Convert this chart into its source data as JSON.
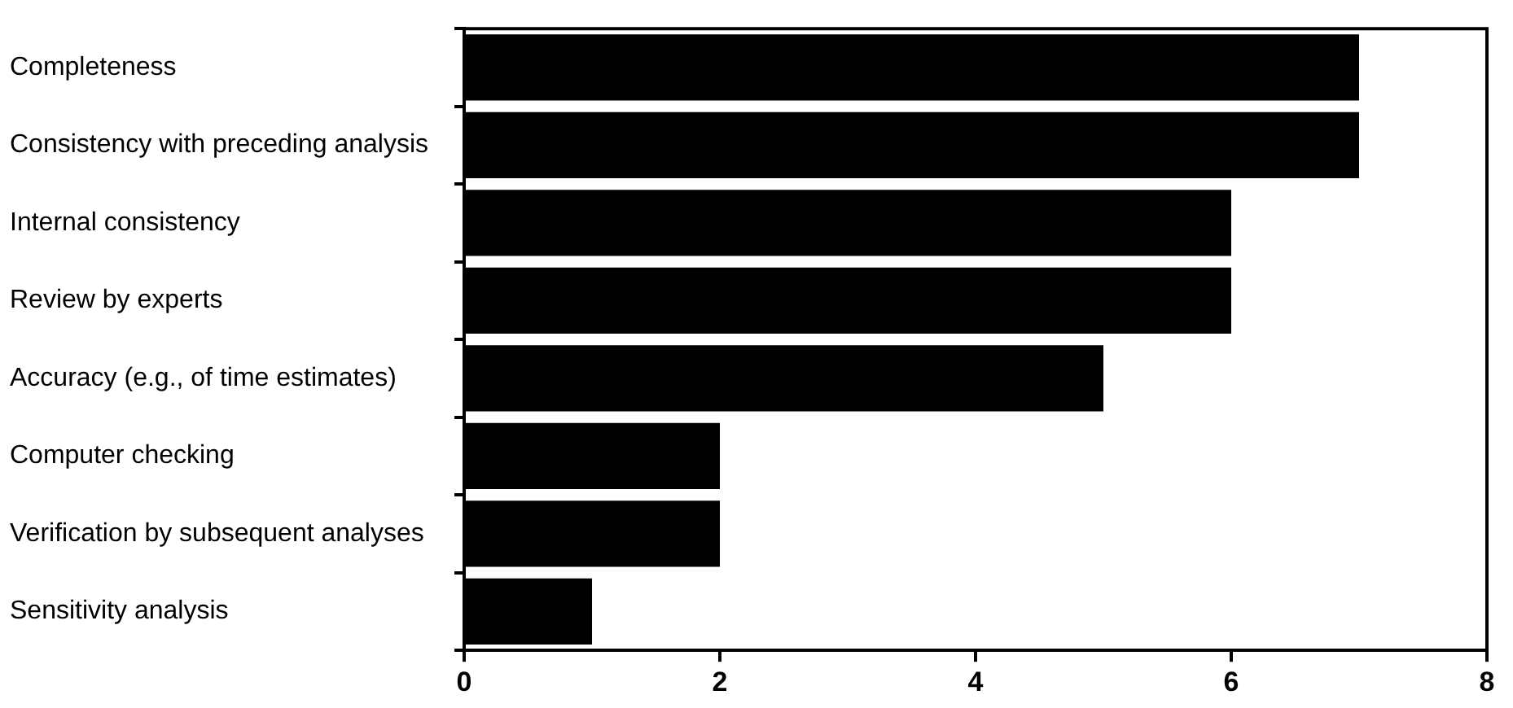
{
  "chart_data": {
    "type": "bar",
    "orientation": "horizontal",
    "categories": [
      "Completeness",
      "Consistency with preceding analysis",
      "Internal consistency",
      "Review by experts",
      "Accuracy (e.g., of time estimates)",
      "Computer checking",
      "Verification by subsequent analyses",
      "Sensitivity analysis"
    ],
    "values": [
      7,
      7,
      6,
      6,
      5,
      2,
      2,
      1
    ],
    "color": "#000000",
    "xlim": [
      0,
      8
    ],
    "xticks": [
      0,
      2,
      4,
      6,
      8
    ],
    "grid": false,
    "legend": false
  }
}
